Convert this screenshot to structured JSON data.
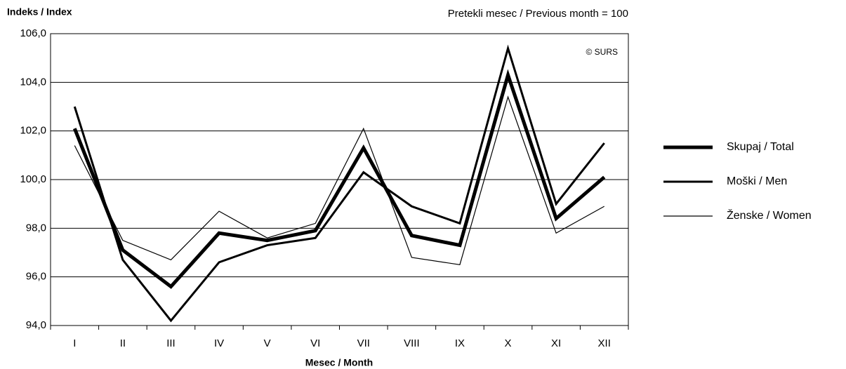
{
  "chart_data": {
    "type": "line",
    "y_label": "Indeks / Index",
    "subtitle": "Pretekli mesec / Previous month = 100",
    "annotation": "© SURS",
    "x_label": "Mesec / Month",
    "categories": [
      "I",
      "II",
      "III",
      "IV",
      "V",
      "VI",
      "VII",
      "VIII",
      "IX",
      "X",
      "XI",
      "XII"
    ],
    "series": [
      {
        "name": "Skupaj / Total",
        "color": "#000000",
        "values": [
          102.1,
          97.1,
          95.6,
          97.8,
          97.5,
          97.9,
          101.3,
          97.7,
          97.3,
          104.3,
          98.4,
          100.1
        ]
      },
      {
        "name": "Moški / Men",
        "color": "#000000",
        "values": [
          103.0,
          96.7,
          94.2,
          96.6,
          97.3,
          97.6,
          100.3,
          98.9,
          98.2,
          105.4,
          99.0,
          101.5
        ]
      },
      {
        "name": "Ženske  / Women",
        "color": "#000000",
        "values": [
          101.4,
          97.5,
          96.7,
          98.7,
          97.6,
          98.2,
          102.1,
          96.8,
          96.5,
          103.4,
          97.8,
          98.9
        ]
      }
    ],
    "ylim": [
      94,
      106
    ],
    "yticks": [
      {
        "value": 94,
        "label": "94,0"
      },
      {
        "value": 96,
        "label": "96,0"
      },
      {
        "value": 98,
        "label": "98,0"
      },
      {
        "value": 100,
        "label": "100,0"
      },
      {
        "value": 102,
        "label": "102,0"
      },
      {
        "value": 104,
        "label": "104,0"
      },
      {
        "value": 106,
        "label": "106,0"
      }
    ],
    "grid": true,
    "legend": "right"
  }
}
